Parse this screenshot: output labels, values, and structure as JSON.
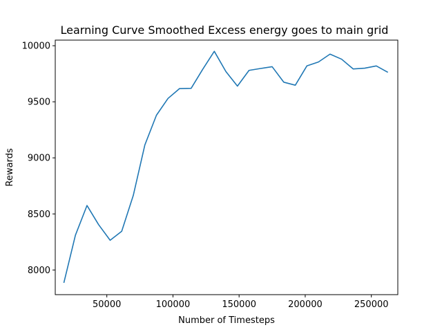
{
  "chart_data": {
    "type": "line",
    "title": "Learning Curve Smoothed Excess energy goes to main grid",
    "xlabel": "Number of Timesteps",
    "ylabel": "Rewards",
    "xlim": [
      11000,
      270000
    ],
    "ylim": [
      7780,
      10050
    ],
    "xticks": [
      50000,
      100000,
      150000,
      200000,
      250000
    ],
    "xtick_labels": [
      "50000",
      "100000",
      "150000",
      "200000",
      "250000"
    ],
    "yticks": [
      8000,
      8500,
      9000,
      9500,
      10000
    ],
    "ytick_labels": [
      "8000",
      "8500",
      "9000",
      "9500",
      "10000"
    ],
    "grid": false,
    "color": "#1f77b4",
    "series": [
      {
        "x": [
          17500,
          26250,
          35000,
          43750,
          52500,
          61250,
          70000,
          78750,
          87500,
          96250,
          105000,
          113750,
          122500,
          131250,
          140000,
          148750,
          157500,
          166250,
          175000,
          183750,
          192500,
          201250,
          210000,
          218750,
          227500,
          236250,
          245000,
          253750,
          262500
        ],
        "values": [
          7885,
          8310,
          8575,
          8405,
          8265,
          8345,
          8665,
          9115,
          9380,
          9530,
          9618,
          9620,
          9790,
          9950,
          9770,
          9640,
          9780,
          9797,
          9813,
          9675,
          9648,
          9820,
          9855,
          9925,
          9880,
          9793,
          9800,
          9820,
          9763
        ]
      }
    ]
  }
}
